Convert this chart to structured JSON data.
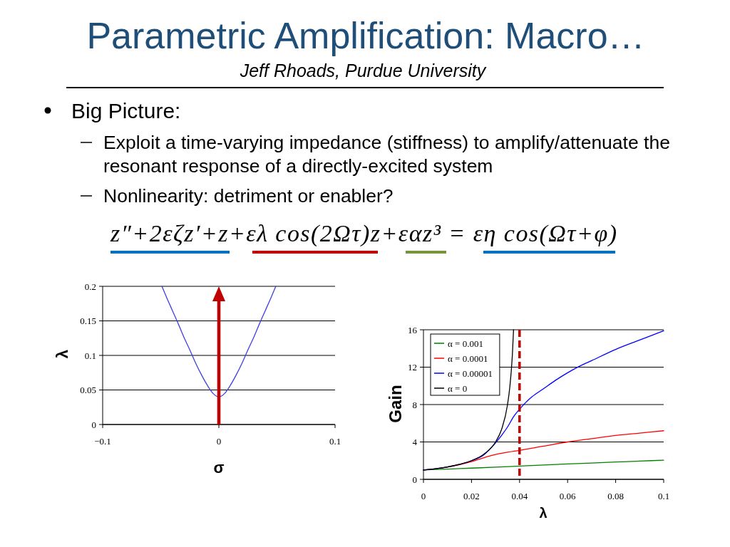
{
  "chart_data": [
    {
      "type": "other",
      "title": "Parametric Amplification: Macro…",
      "subtitle": "Jeff Rhoads, Purdue University",
      "annotations": [
        "Big Picture:",
        "Exploit a time-varying impedance (stiffness) to amplify/attenuate the resonant response of a directly-excited system",
        "Nonlinearity: detriment or enabler?",
        "z″+2εζz′+z+ελ cos(2Ωτ)z+εαz³ = εη cos(Ωτ+φ)"
      ]
    },
    {
      "type": "line",
      "xlabel": "σ",
      "ylabel": "λ",
      "x": [
        -0.049,
        -0.045,
        -0.04,
        -0.035,
        -0.03,
        -0.025,
        -0.02,
        -0.015,
        -0.01,
        -0.005,
        0,
        0.005,
        0.01,
        0.015,
        0.02,
        0.025,
        0.03,
        0.035,
        0.04,
        0.045,
        0.049
      ],
      "series": [
        {
          "color": "#4040e0",
          "values": [
            0.2,
            0.184,
            0.165,
            0.146,
            0.126,
            0.108,
            0.089,
            0.072,
            0.057,
            0.045,
            0.04,
            0.045,
            0.057,
            0.072,
            0.089,
            0.108,
            0.126,
            0.146,
            0.165,
            0.184,
            0.2
          ]
        }
      ],
      "xlim": [
        -0.1,
        0.1
      ],
      "ylim": [
        0,
        0.2
      ],
      "xticks": [
        {
          "value": -0.1,
          "label": "−0.1"
        },
        0,
        0.1
      ],
      "yticks": [
        0,
        0.05,
        0.1,
        0.15,
        0.2
      ],
      "grid": "y",
      "ref_lines": [
        {
          "axis": "x",
          "value": 0,
          "color": "#c00000",
          "line_style": "solid"
        }
      ]
    },
    {
      "type": "line",
      "xlabel": "λ",
      "ylabel": "Gain",
      "series": [
        {
          "name": "α = 0.001",
          "color": "#008000",
          "x": [
            0,
            0.01,
            0.02,
            0.03,
            0.04,
            0.05,
            0.06,
            0.07,
            0.08,
            0.09,
            0.1
          ],
          "values": [
            1,
            1.1,
            1.2,
            1.3,
            1.42,
            1.53,
            1.64,
            1.75,
            1.85,
            1.95,
            2.05
          ]
        },
        {
          "name": "α = 0.0001",
          "color": "#ff0000",
          "x": [
            0,
            0.01,
            0.02,
            0.025,
            0.03,
            0.035,
            0.04,
            0.05,
            0.06,
            0.07,
            0.08,
            0.09,
            0.1
          ],
          "values": [
            1,
            1.3,
            1.9,
            2.3,
            2.65,
            2.9,
            3.1,
            3.55,
            4,
            4.35,
            4.7,
            4.95,
            5.2
          ]
        },
        {
          "name": "α = 0.00001",
          "color": "#0000ff",
          "x": [
            0,
            0.01,
            0.02,
            0.025,
            0.03,
            0.0325,
            0.035,
            0.0375,
            0.04,
            0.0425,
            0.045,
            0.05,
            0.055,
            0.06,
            0.065,
            0.07,
            0.08,
            0.09,
            0.1
          ],
          "values": [
            1,
            1.33,
            2,
            2.6,
            3.9,
            4.7,
            5.6,
            6.7,
            7.5,
            8.2,
            8.8,
            9.7,
            10.6,
            11.4,
            12.1,
            12.7,
            13.9,
            14.9,
            15.9
          ]
        },
        {
          "name": "α = 0",
          "color": "#000000",
          "x": [
            0,
            0.005,
            0.01,
            0.015,
            0.02,
            0.025,
            0.03,
            0.0325,
            0.035,
            0.036,
            0.037,
            0.0375
          ],
          "values": [
            1,
            1.14,
            1.33,
            1.6,
            2,
            2.67,
            4,
            5.33,
            8,
            10,
            13.3,
            16
          ]
        }
      ],
      "xlim": [
        0,
        0.1
      ],
      "ylim": [
        0,
        16
      ],
      "xticks": [
        0,
        0.02,
        0.04,
        0.06,
        0.08,
        0.1
      ],
      "yticks": [
        0,
        4,
        8,
        12,
        16
      ],
      "grid": "y",
      "legend": "top left",
      "ref_lines": [
        {
          "axis": "x",
          "value": 0.04,
          "color": "#c00000",
          "line_style": "dashed"
        }
      ]
    }
  ]
}
